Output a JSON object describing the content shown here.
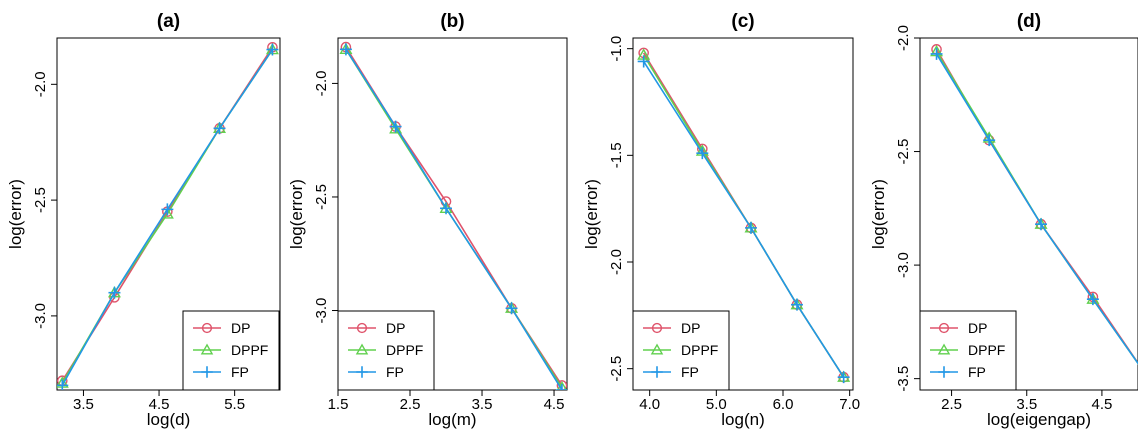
{
  "series_colors": {
    "DP": "#DF536B",
    "DPPF": "#61D04F",
    "FP": "#2297E6"
  },
  "chart_data": [
    {
      "type": "line",
      "title": "(a)",
      "xlabel": "log(d)",
      "ylabel": "log(error)",
      "xlim": [
        3.15,
        6.1
      ],
      "ylim": [
        -3.32,
        -1.8
      ],
      "xticks": [
        3.5,
        4.5,
        5.5
      ],
      "xtick_labels": [
        "3.5",
        "4.5",
        "5.5"
      ],
      "yticks": [
        -3.0,
        -2.5,
        -2.0
      ],
      "ytick_labels": [
        "-3.0",
        "-2.5",
        "-2.0"
      ],
      "legend": {
        "position": "bottom-right",
        "entries": [
          "DP",
          "DPPF",
          "FP"
        ]
      },
      "series": [
        {
          "name": "DP",
          "marker": "circle",
          "x": [
            3.22,
            3.91,
            4.61,
            5.3,
            6.0
          ],
          "y": [
            -3.28,
            -2.92,
            -2.55,
            -2.19,
            -1.84
          ]
        },
        {
          "name": "DPPF",
          "marker": "triangle",
          "x": [
            3.22,
            3.91,
            4.61,
            5.3,
            6.0
          ],
          "y": [
            -3.29,
            -2.9,
            -2.56,
            -2.19,
            -1.85
          ]
        },
        {
          "name": "FP",
          "marker": "plus",
          "x": [
            3.22,
            3.91,
            4.61,
            5.3,
            6.0
          ],
          "y": [
            -3.3,
            -2.9,
            -2.54,
            -2.19,
            -1.85
          ]
        }
      ]
    },
    {
      "type": "line",
      "title": "(b)",
      "xlabel": "log(m)",
      "ylabel": "log(error)",
      "xlim": [
        1.5,
        4.68
      ],
      "ylim": [
        -3.35,
        -1.8
      ],
      "xticks": [
        1.5,
        2.5,
        3.5,
        4.5
      ],
      "xtick_labels": [
        "1.5",
        "2.5",
        "3.5",
        "4.5"
      ],
      "yticks": [
        -3.0,
        -2.5,
        -2.0
      ],
      "ytick_labels": [
        "-3.0",
        "-2.5",
        "-2.0"
      ],
      "legend": {
        "position": "bottom-left",
        "entries": [
          "DP",
          "DPPF",
          "FP"
        ]
      },
      "series": [
        {
          "name": "DP",
          "marker": "circle",
          "x": [
            1.61,
            2.3,
            3.0,
            3.91,
            4.61
          ],
          "y": [
            -1.84,
            -2.19,
            -2.52,
            -2.99,
            -3.33
          ]
        },
        {
          "name": "DPPF",
          "marker": "triangle",
          "x": [
            1.61,
            2.3,
            3.0,
            3.91,
            4.61
          ],
          "y": [
            -1.85,
            -2.2,
            -2.55,
            -2.99,
            -3.34
          ]
        },
        {
          "name": "FP",
          "marker": "plus",
          "x": [
            1.61,
            2.3,
            3.0,
            3.91,
            4.61
          ],
          "y": [
            -1.85,
            -2.19,
            -2.55,
            -2.99,
            -3.35
          ]
        }
      ]
    },
    {
      "type": "line",
      "title": "(c)",
      "xlabel": "log(n)",
      "ylabel": "log(error)",
      "xlim": [
        3.75,
        7.05
      ],
      "ylim": [
        -2.6,
        -0.95
      ],
      "xticks": [
        4.0,
        5.0,
        6.0,
        7.0
      ],
      "xtick_labels": [
        "4.0",
        "5.0",
        "6.0",
        "7.0"
      ],
      "yticks": [
        -2.5,
        -2.0,
        -1.5,
        -1.0
      ],
      "ytick_labels": [
        "-2.5",
        "-2.0",
        "-1.5",
        "-1.0"
      ],
      "legend": {
        "position": "bottom-left",
        "entries": [
          "DP",
          "DPPF",
          "FP"
        ]
      },
      "series": [
        {
          "name": "DP",
          "marker": "circle",
          "x": [
            3.91,
            4.79,
            5.52,
            6.21,
            6.91
          ],
          "y": [
            -1.02,
            -1.47,
            -1.84,
            -2.2,
            -2.54
          ]
        },
        {
          "name": "DPPF",
          "marker": "triangle",
          "x": [
            3.91,
            4.79,
            5.52,
            6.21,
            6.91
          ],
          "y": [
            -1.03,
            -1.48,
            -1.84,
            -2.2,
            -2.54
          ]
        },
        {
          "name": "FP",
          "marker": "plus",
          "x": [
            3.91,
            4.79,
            5.52,
            6.21,
            6.91
          ],
          "y": [
            -1.06,
            -1.49,
            -1.84,
            -2.2,
            -2.54
          ]
        }
      ]
    },
    {
      "type": "line",
      "title": "(d)",
      "xlabel": "log(eigengap)",
      "ylabel": "log(error)",
      "xlim": [
        2.08,
        4.98
      ],
      "ylim": [
        -3.55,
        -2.0
      ],
      "xticks": [
        2.5,
        3.5,
        4.5
      ],
      "xtick_labels": [
        "2.5",
        "3.5",
        "4.5"
      ],
      "yticks": [
        -3.5,
        -3.0,
        -2.5,
        -2.0
      ],
      "ytick_labels": [
        "-3.5",
        "-3.0",
        "-2.5",
        "-2.0"
      ],
      "legend": {
        "position": "bottom-left",
        "entries": [
          "DP",
          "DPPF",
          "FP"
        ]
      },
      "series": [
        {
          "name": "DP",
          "marker": "circle",
          "x": [
            2.3,
            3.0,
            3.69,
            4.38,
            5.08
          ],
          "y": [
            -2.05,
            -2.45,
            -2.82,
            -3.14,
            -3.48
          ]
        },
        {
          "name": "DPPF",
          "marker": "triangle",
          "x": [
            2.3,
            3.0,
            3.69,
            4.38,
            5.08
          ],
          "y": [
            -2.06,
            -2.44,
            -2.82,
            -3.15,
            -3.48
          ]
        },
        {
          "name": "FP",
          "marker": "plus",
          "x": [
            2.3,
            3.0,
            3.69,
            4.38,
            5.08
          ],
          "y": [
            -2.07,
            -2.45,
            -2.82,
            -3.15,
            -3.48
          ]
        }
      ]
    }
  ]
}
